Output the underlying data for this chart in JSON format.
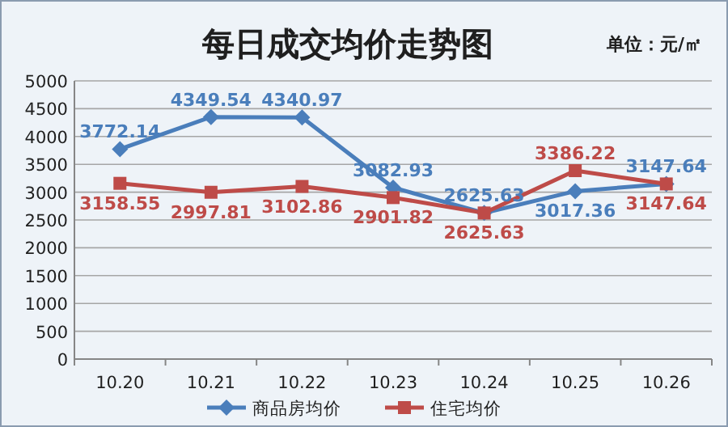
{
  "chart_data": {
    "type": "line",
    "title": "每日成交均价走势图",
    "annotations": [
      "单位：元/㎡"
    ],
    "categories": [
      "10.20",
      "10.21",
      "10.22",
      "10.23",
      "10.24",
      "10.25",
      "10.26"
    ],
    "series": [
      {
        "name": "商品房均价",
        "color": "#4a7ebb",
        "marker": "diamond",
        "values": [
          3772.14,
          4349.54,
          4340.97,
          3082.93,
          2625.63,
          3017.36,
          3147.64
        ]
      },
      {
        "name": "住宅均价",
        "color": "#be4b48",
        "marker": "square",
        "values": [
          3158.55,
          2997.81,
          3102.86,
          2901.82,
          2625.63,
          3386.22,
          3147.64
        ]
      }
    ],
    "ylim": [
      0,
      5000
    ],
    "yticks": [
      0,
      500,
      1000,
      1500,
      2000,
      2500,
      3000,
      3500,
      4000,
      4500,
      5000
    ],
    "grid": "y",
    "legend": "bottom",
    "data_labels": true
  }
}
